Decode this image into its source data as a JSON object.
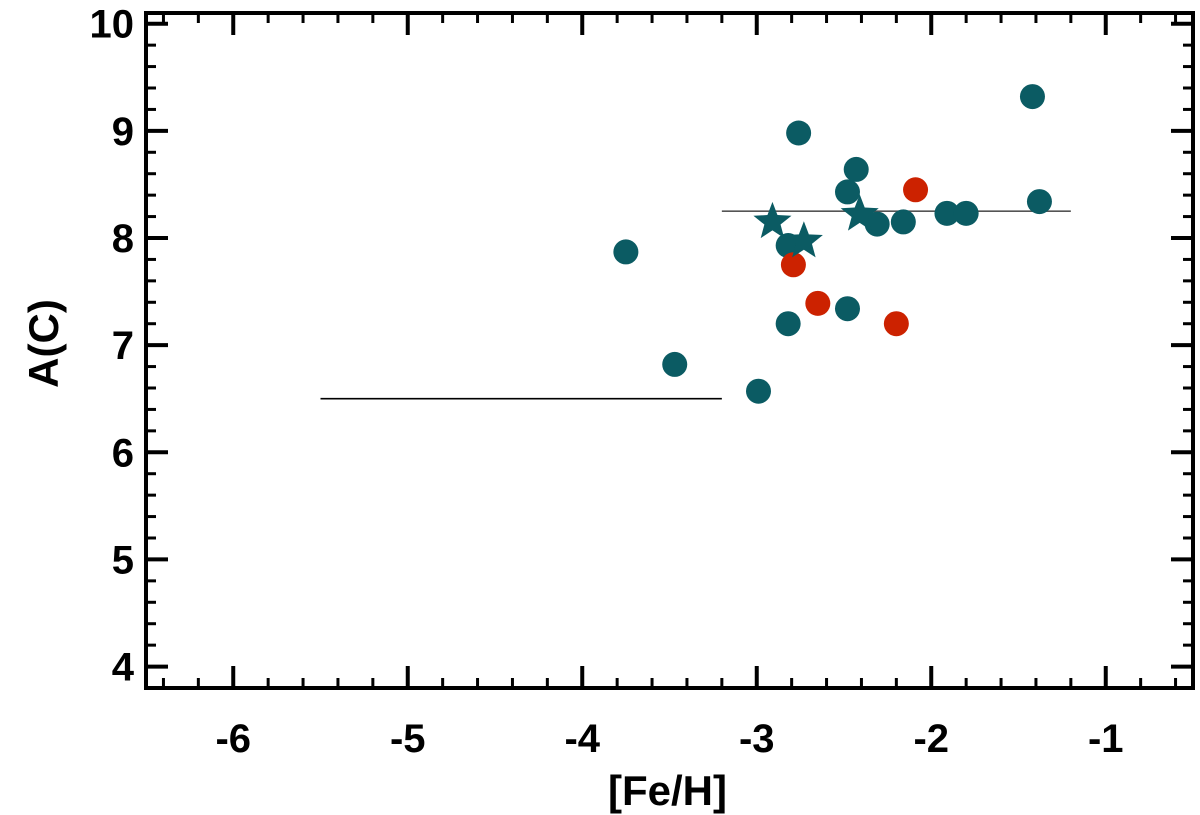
{
  "chart_data": {
    "type": "scatter",
    "title": "",
    "xlabel": "[Fe/H]",
    "ylabel": "A(C)",
    "xlim": [
      -6.5,
      -0.5
    ],
    "ylim": [
      3.8,
      10.1
    ],
    "xticks": [
      -6,
      -5,
      -4,
      -3,
      -2,
      -1
    ],
    "xtick_labels": [
      "-6",
      "-5",
      "-4",
      "-3",
      "-2",
      "-1"
    ],
    "yticks": [
      4,
      5,
      6,
      7,
      8,
      9,
      10
    ],
    "ytick_labels": [
      "4",
      "5",
      "6",
      "7",
      "8",
      "9",
      "10"
    ],
    "grid": false,
    "series": [
      {
        "marker": "circle",
        "color": "#0b5b63",
        "points": [
          {
            "x": -3.75,
            "y": 7.87
          },
          {
            "x": -3.47,
            "y": 6.82
          },
          {
            "x": -2.99,
            "y": 6.57
          },
          {
            "x": -2.76,
            "y": 8.98
          },
          {
            "x": -2.82,
            "y": 7.93
          },
          {
            "x": -2.82,
            "y": 7.2
          },
          {
            "x": -2.48,
            "y": 8.43
          },
          {
            "x": -2.48,
            "y": 7.34
          },
          {
            "x": -2.43,
            "y": 8.64
          },
          {
            "x": -2.31,
            "y": 8.13
          },
          {
            "x": -2.16,
            "y": 8.15
          },
          {
            "x": -1.91,
            "y": 8.23
          },
          {
            "x": -1.8,
            "y": 8.23
          },
          {
            "x": -1.42,
            "y": 9.32
          },
          {
            "x": -1.38,
            "y": 8.34
          }
        ]
      },
      {
        "marker": "circle",
        "color": "#cc2200",
        "points": [
          {
            "x": -2.09,
            "y": 8.45
          },
          {
            "x": -2.79,
            "y": 7.75
          },
          {
            "x": -2.65,
            "y": 7.39
          },
          {
            "x": -2.2,
            "y": 7.2
          }
        ]
      },
      {
        "marker": "star",
        "color": "#0b5b63",
        "points": [
          {
            "x": -2.91,
            "y": 8.15
          },
          {
            "x": -2.73,
            "y": 7.97
          },
          {
            "x": -2.41,
            "y": 8.22
          }
        ]
      }
    ],
    "reference_lines": [
      {
        "x": [
          -5.5,
          -3.2
        ],
        "y": [
          6.5,
          6.5
        ],
        "color": "#000000"
      },
      {
        "x": [
          -3.2,
          -1.2
        ],
        "y": [
          8.25,
          8.25
        ],
        "color": "#555555"
      }
    ]
  }
}
